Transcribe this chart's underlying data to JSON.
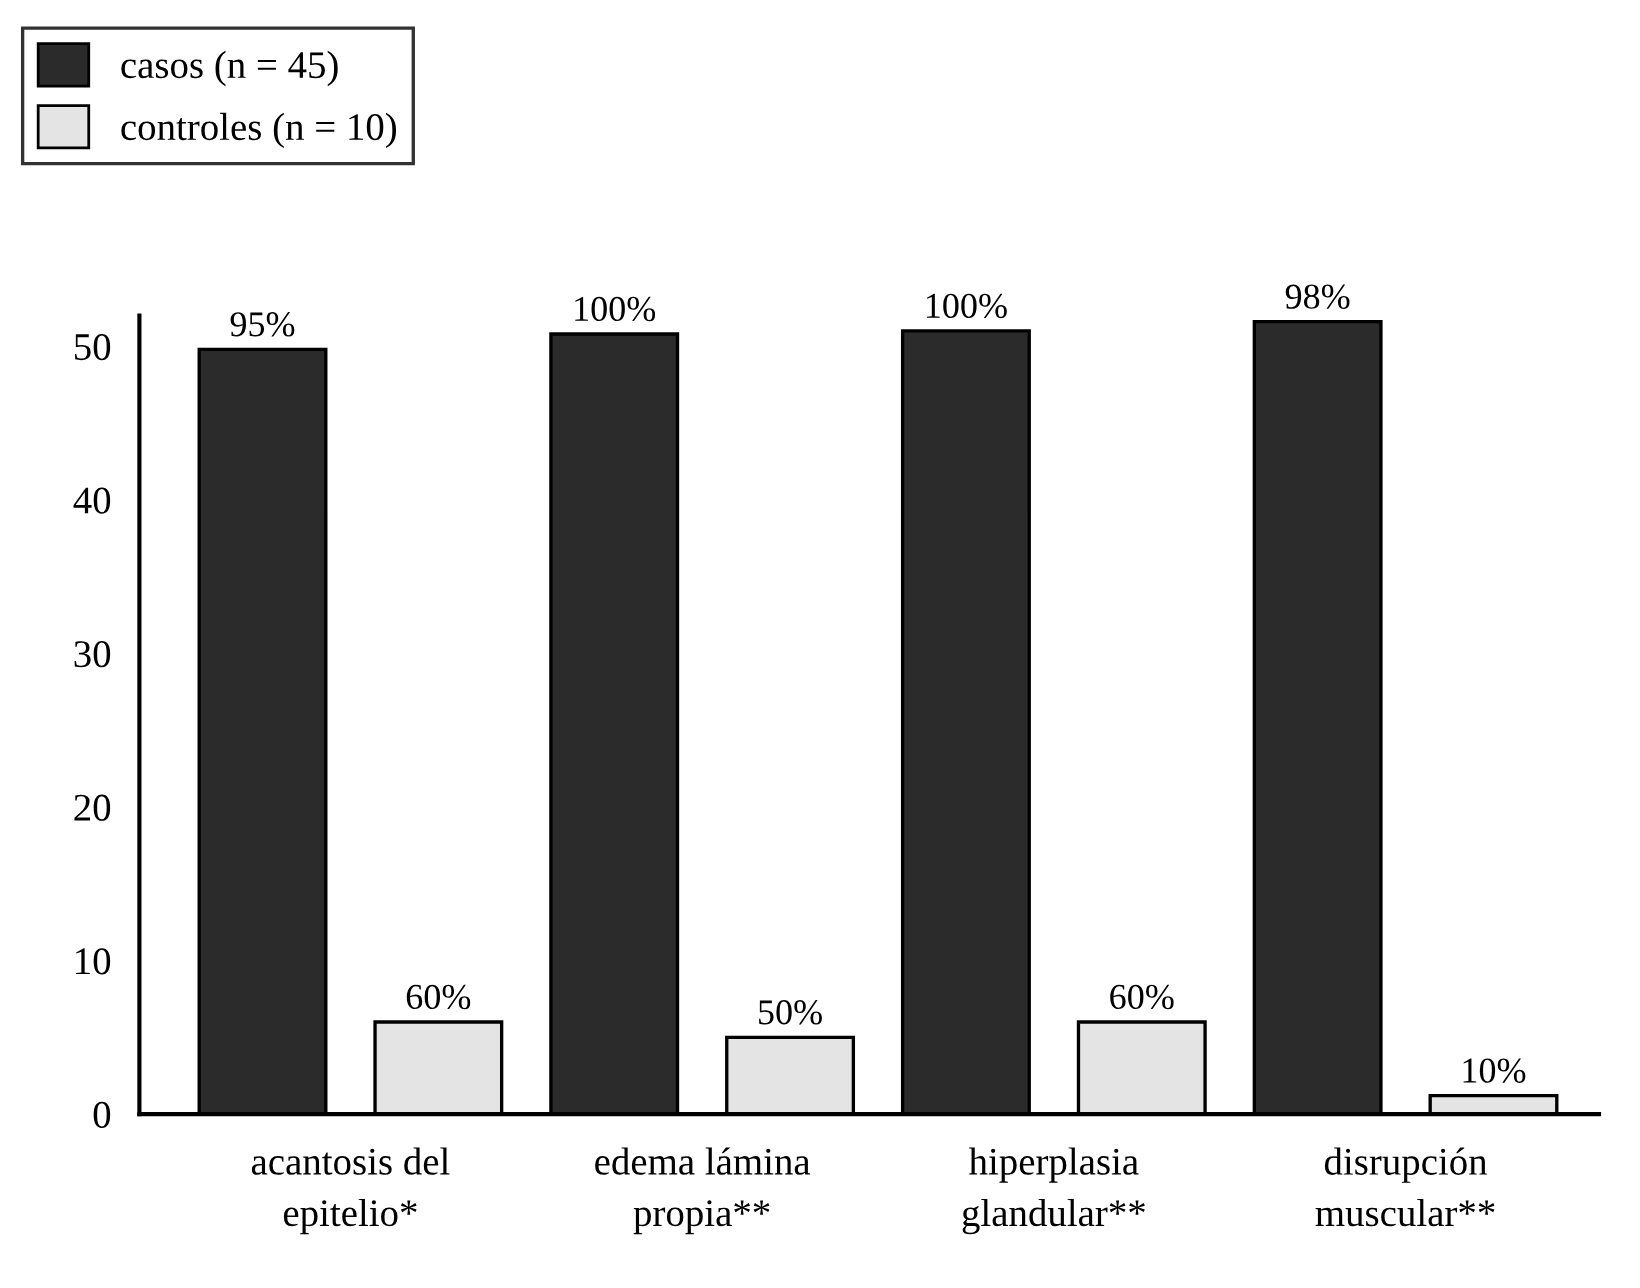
{
  "chart_data": {
    "type": "bar",
    "categories": [
      "acantosis del\nepitelio*",
      "edema lámina\npropia**",
      "hiperplasia\nglandular**",
      "disrupción\nmuscular**"
    ],
    "series": [
      {
        "name": "casos (n = 45)",
        "color": "#2b2b2b",
        "values": [
          49.8,
          50.8,
          51,
          51.6
        ]
      },
      {
        "name": "controles (n = 10)",
        "color": "#e4e4e4",
        "values": [
          6,
          5,
          6,
          1.2
        ]
      }
    ],
    "annotations": [
      "95%",
      "100%",
      "100%",
      "98%",
      "60%",
      "50%",
      "60%",
      "10%"
    ],
    "ylim": [
      0,
      52
    ],
    "yticks": [
      0,
      10,
      20,
      30,
      40,
      50
    ],
    "grid": false,
    "legend": "top left"
  }
}
